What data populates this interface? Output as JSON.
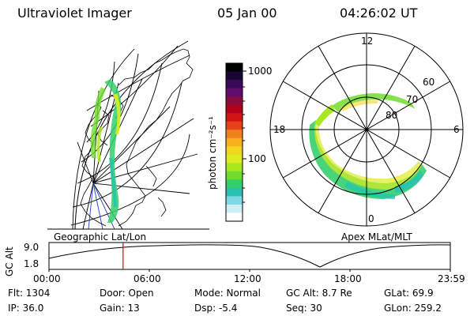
{
  "header": {
    "instrument": "Ultraviolet Imager",
    "date": "05 Jan 00",
    "time": "04:26:02 UT"
  },
  "colorbar": {
    "label": "photon cm⁻²s⁻¹",
    "ticks": [
      "1000",
      "100"
    ],
    "colors": [
      "#000000",
      "#1a0633",
      "#3a0a5a",
      "#600c6a",
      "#8a0b3e",
      "#b3001e",
      "#d21414",
      "#e6411a",
      "#f07f1e",
      "#f6b21c",
      "#f2d51f",
      "#dcec1f",
      "#a7e81f",
      "#70dd2e",
      "#33cf6b",
      "#27c3b0",
      "#7ed9e4",
      "#cfeef3",
      "#ffffff"
    ]
  },
  "left_panel": {
    "label": "Geographic Lat/Lon"
  },
  "right_panel": {
    "label": "Apex MLat/MLT",
    "mlt_labels": {
      "top": "12",
      "left": "18",
      "right": "6",
      "bottom": "0"
    },
    "mlat_labels": [
      "60",
      "70",
      "80"
    ]
  },
  "timeline": {
    "ylabel": "GC Alt",
    "ymax": "9.0",
    "ymin": "1.8",
    "ticks": [
      "00:00",
      "06:00",
      "12:00",
      "18:00",
      "23:59"
    ],
    "marker_fraction": 0.1847,
    "marker_color": "#e00000"
  },
  "info": {
    "flt": "Flt: 1304",
    "ip": "IP: 36.0",
    "door": "Door: Open",
    "gain": "Gain: 13",
    "mode": "Mode: Normal",
    "dsp": "Dsp:   -5.4",
    "gc_alt": "GC Alt: 8.7 Re",
    "seq": "Seq: 30",
    "glat": "GLat:  69.9",
    "glon": "GLon: 259.2"
  }
}
